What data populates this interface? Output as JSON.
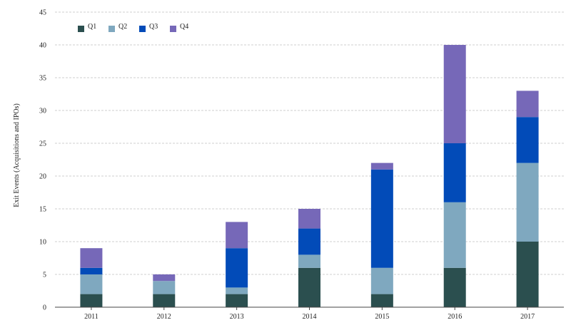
{
  "chart_data": {
    "type": "bar",
    "stacked": true,
    "title": "",
    "xlabel": "",
    "ylabel": "Exit Events (Acquisitions and IPOs)",
    "ylim": [
      0,
      45
    ],
    "yticks": [
      0,
      5,
      10,
      15,
      20,
      25,
      30,
      35,
      40,
      45
    ],
    "grid": true,
    "legend_position": "top-left",
    "categories": [
      "2011",
      "2012",
      "2013",
      "2014",
      "2015",
      "2016",
      "2017"
    ],
    "series": [
      {
        "name": "Q1",
        "color": "#2b4f4f",
        "values": [
          2,
          2,
          2,
          6,
          2,
          6,
          10
        ]
      },
      {
        "name": "Q2",
        "color": "#7fa8bf",
        "values": [
          3,
          2,
          1,
          2,
          4,
          10,
          12
        ]
      },
      {
        "name": "Q3",
        "color": "#024bb8",
        "values": [
          1,
          0,
          6,
          4,
          15,
          9,
          7
        ]
      },
      {
        "name": "Q4",
        "color": "#7668b8",
        "values": [
          3,
          1,
          4,
          3,
          1,
          15,
          4
        ]
      }
    ]
  }
}
